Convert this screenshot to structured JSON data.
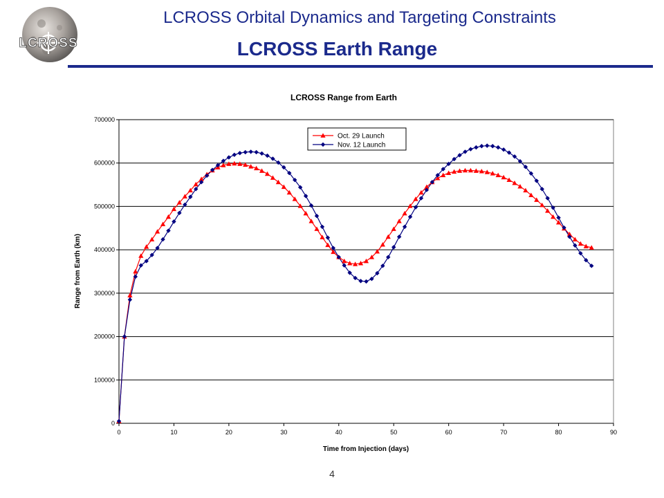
{
  "header": {
    "logo_text": "LCROSS",
    "deck_title": "LCROSS Orbital Dynamics and Targeting Constraints",
    "slide_title": "LCROSS Earth Range"
  },
  "footer": {
    "page_number": "4"
  },
  "colors": {
    "title_blue": "#1b2a8c",
    "oct_series": "#ff0000",
    "nov_series": "#000080"
  },
  "chart_data": {
    "type": "line",
    "title": "LCROSS Range from Earth",
    "xlabel": "Time from Injection (days)",
    "ylabel": "Range from Earth (km)",
    "xlim": [
      0,
      90
    ],
    "ylim": [
      0,
      700000
    ],
    "xticks": [
      0,
      10,
      20,
      30,
      40,
      50,
      60,
      70,
      80,
      90
    ],
    "yticks": [
      0,
      100000,
      200000,
      300000,
      400000,
      500000,
      600000,
      700000
    ],
    "grid": "horizontal",
    "legend_position": "top-center",
    "series": [
      {
        "name": "Oct. 29 Launch",
        "marker": "triangle",
        "color": "#ff0000",
        "x": [
          0,
          1,
          2,
          3,
          4,
          5,
          6,
          7,
          8,
          9,
          10,
          11,
          12,
          13,
          14,
          15,
          16,
          17,
          18,
          19,
          20,
          21,
          22,
          23,
          24,
          25,
          26,
          27,
          28,
          29,
          30,
          31,
          32,
          33,
          34,
          35,
          36,
          37,
          38,
          39,
          40,
          41,
          42,
          43,
          44,
          45,
          46,
          47,
          48,
          49,
          50,
          51,
          52,
          53,
          54,
          55,
          56,
          57,
          58,
          59,
          60,
          61,
          62,
          63,
          64,
          65,
          66,
          67,
          68,
          69,
          70,
          71,
          72,
          73,
          74,
          75,
          76,
          77,
          78,
          79,
          80,
          81,
          82,
          83,
          84,
          85,
          86
        ],
        "y": [
          5000,
          200000,
          295000,
          350000,
          386000,
          407000,
          424000,
          442000,
          459000,
          476000,
          494000,
          509000,
          523000,
          537000,
          551000,
          563000,
          574000,
          583000,
          590000,
          595000,
          598000,
          599000,
          598000,
          596000,
          592000,
          588000,
          582000,
          575000,
          566000,
          556000,
          545000,
          532000,
          517000,
          501000,
          484000,
          466000,
          448000,
          429000,
          411000,
          395000,
          383000,
          374000,
          369000,
          367000,
          369000,
          374000,
          383000,
          396000,
          412000,
          430000,
          448000,
          466000,
          484000,
          501000,
          517000,
          532000,
          545000,
          556000,
          565000,
          572000,
          577000,
          580000,
          582000,
          583000,
          583000,
          582000,
          581000,
          579000,
          576000,
          572000,
          567000,
          561000,
          554000,
          546000,
          537000,
          526000,
          515000,
          503000,
          490000,
          476000,
          463000,
          449000,
          436000,
          424000,
          414000,
          408000,
          405000
        ]
      },
      {
        "name": "Nov. 12 Launch",
        "marker": "diamond",
        "color": "#000080",
        "x": [
          0,
          1,
          2,
          3,
          4,
          5,
          6,
          7,
          8,
          9,
          10,
          11,
          12,
          13,
          14,
          15,
          16,
          17,
          18,
          19,
          20,
          21,
          22,
          23,
          24,
          25,
          26,
          27,
          28,
          29,
          30,
          31,
          32,
          33,
          34,
          35,
          36,
          37,
          38,
          39,
          40,
          41,
          42,
          43,
          44,
          45,
          46,
          47,
          48,
          49,
          50,
          51,
          52,
          53,
          54,
          55,
          56,
          57,
          58,
          59,
          60,
          61,
          62,
          63,
          64,
          65,
          66,
          67,
          68,
          69,
          70,
          71,
          72,
          73,
          74,
          75,
          76,
          77,
          78,
          79,
          80,
          81,
          82,
          83,
          84,
          85,
          86
        ],
        "y": [
          5000,
          200000,
          285000,
          338000,
          364000,
          374000,
          388000,
          404000,
          424000,
          444000,
          465000,
          485000,
          504000,
          522000,
          540000,
          556000,
          571000,
          584000,
          595000,
          605000,
          613000,
          619000,
          623000,
          625000,
          626000,
          625000,
          622000,
          617000,
          610000,
          601000,
          590000,
          577000,
          561000,
          544000,
          524000,
          502000,
          478000,
          453000,
          428000,
          404000,
          383000,
          364000,
          347000,
          335000,
          328000,
          327000,
          333000,
          346000,
          363000,
          383000,
          406000,
          430000,
          453000,
          476000,
          498000,
          519000,
          538000,
          556000,
          572000,
          586000,
          598000,
          609000,
          618000,
          626000,
          632000,
          636000,
          639000,
          640000,
          639000,
          636000,
          631000,
          624000,
          615000,
          604000,
          591000,
          576000,
          559000,
          540000,
          519000,
          497000,
          474000,
          451000,
          430000,
          410000,
          392000,
          376000,
          363000
        ]
      }
    ]
  }
}
